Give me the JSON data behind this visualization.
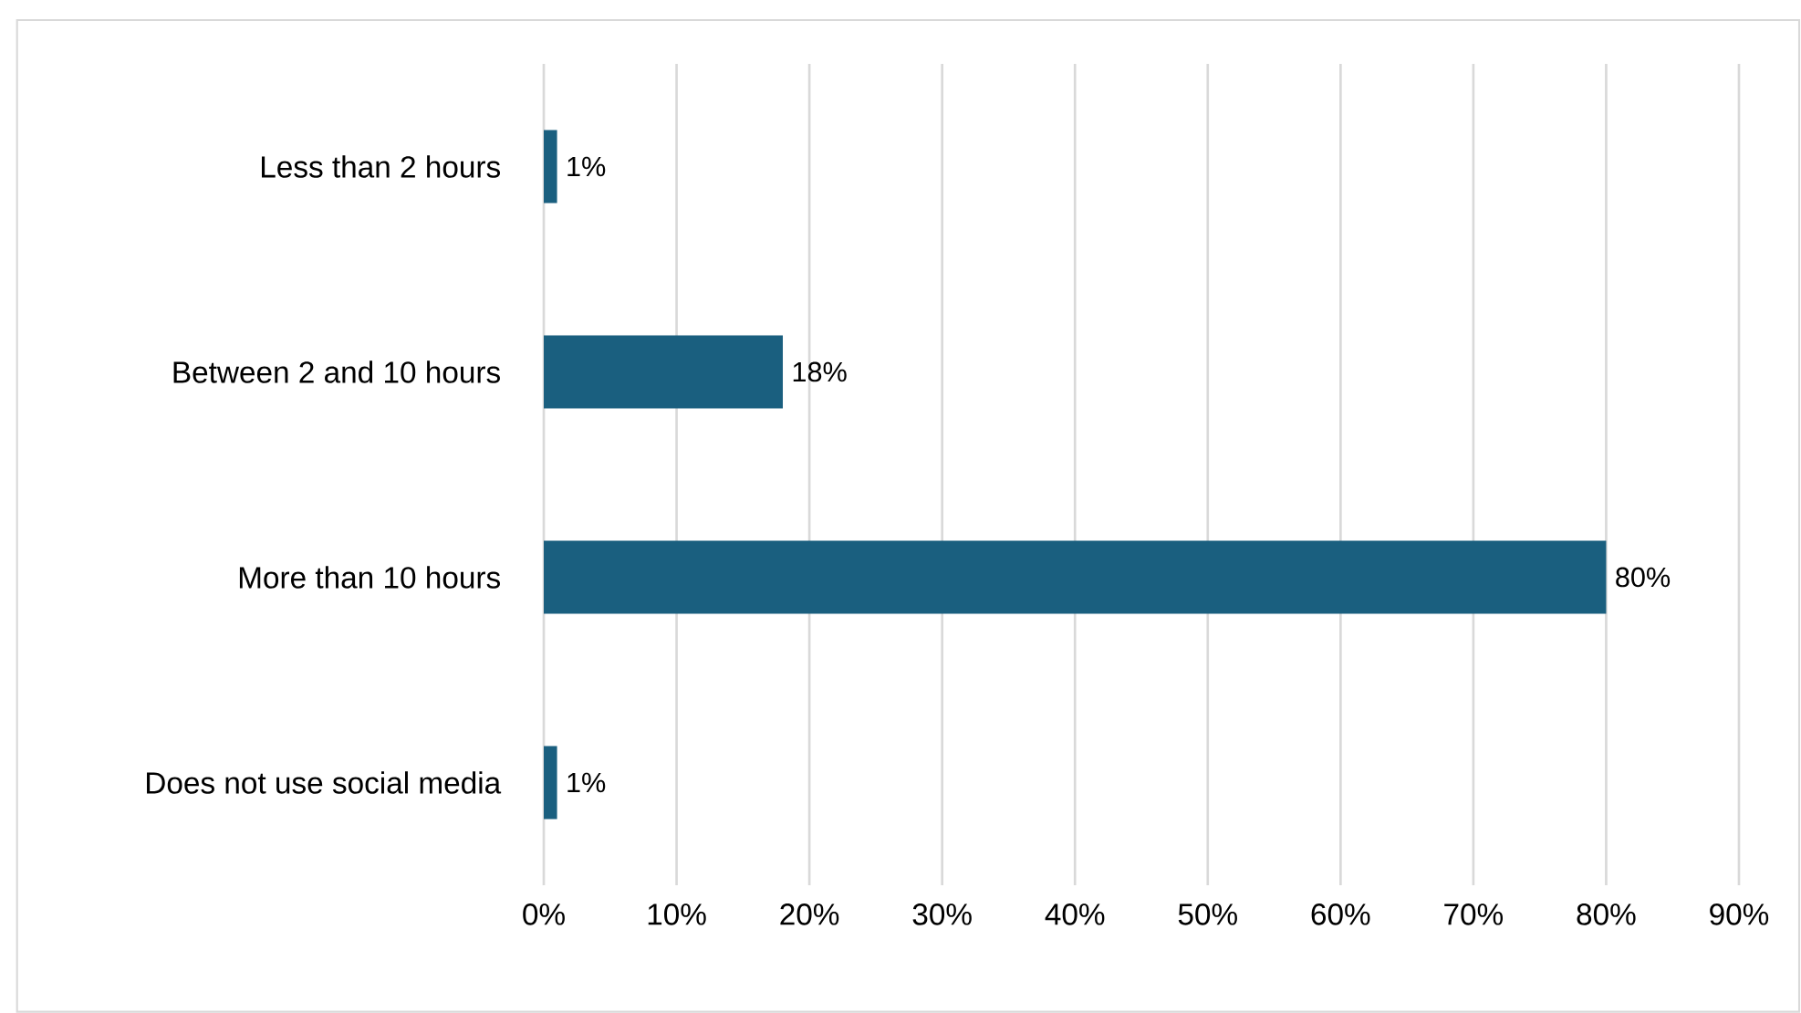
{
  "chart_data": {
    "type": "bar",
    "orientation": "horizontal",
    "categories": [
      "Less than 2 hours",
      "Between 2 and 10 hours",
      "More than 10 hours",
      "Does not use social media"
    ],
    "values": [
      1,
      18,
      80,
      1
    ],
    "value_labels": [
      "1%",
      "18%",
      "80%",
      "1%"
    ],
    "color": "#1a5f7f",
    "xlim": [
      0,
      90
    ],
    "xticks": [
      {
        "value": 0,
        "label": "0%"
      },
      {
        "value": 10,
        "label": "10%"
      },
      {
        "value": 20,
        "label": "20%"
      },
      {
        "value": 30,
        "label": "30%"
      },
      {
        "value": 40,
        "label": "40%"
      },
      {
        "value": 50,
        "label": "50%"
      },
      {
        "value": 60,
        "label": "60%"
      },
      {
        "value": 70,
        "label": "70%"
      },
      {
        "value": 80,
        "label": "80%"
      },
      {
        "value": 90,
        "label": "90%"
      }
    ],
    "grid": "x"
  }
}
